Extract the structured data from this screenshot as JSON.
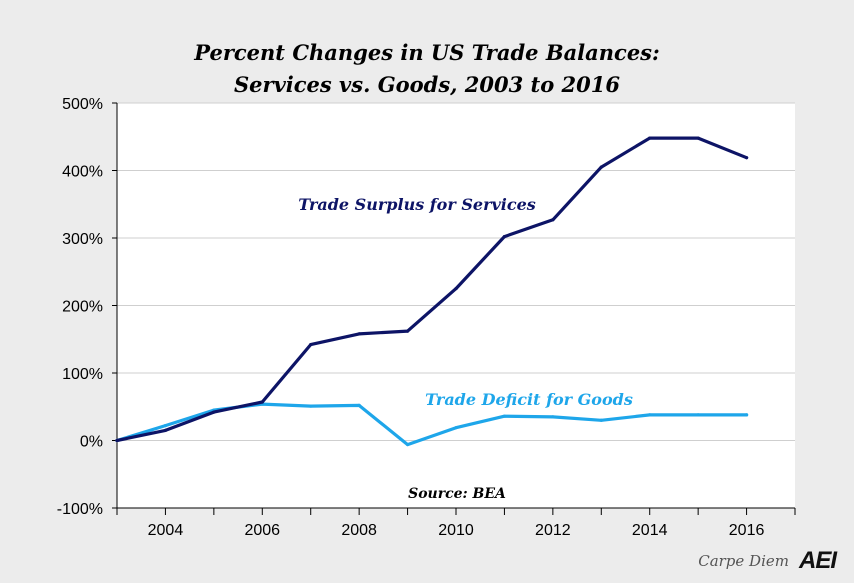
{
  "chart_data": {
    "type": "line",
    "title_line1": "Percent Changes in US Trade Balances:",
    "title_line2": "Services vs. Goods, 2003 to 2016",
    "x": [
      2003,
      2004,
      2005,
      2006,
      2007,
      2008,
      2009,
      2010,
      2011,
      2012,
      2013,
      2014,
      2015,
      2016
    ],
    "series": [
      {
        "name": "Trade Surplus for Services",
        "color": "#0d1466",
        "values": [
          0,
          15,
          42,
          57,
          142,
          158,
          162,
          225,
          302,
          327,
          405,
          448,
          448,
          419
        ]
      },
      {
        "name": "Trade Deficit for Goods",
        "color": "#1ea6ea",
        "values": [
          0,
          22,
          45,
          54,
          51,
          52,
          -6,
          19,
          36,
          35,
          30,
          38,
          38,
          38
        ]
      }
    ],
    "xlim": [
      2003,
      2017
    ],
    "ylim": [
      -100,
      500
    ],
    "yticks": [
      -100,
      0,
      100,
      200,
      300,
      400,
      500
    ],
    "ytick_labels": [
      "-100%",
      "0%",
      "100%",
      "200%",
      "300%",
      "400%",
      "500%"
    ],
    "xticks": [
      2004,
      2006,
      2008,
      2010,
      2012,
      2014,
      2016
    ],
    "xtick_labels": [
      "2004",
      "2006",
      "2008",
      "2010",
      "2012",
      "2014",
      "2016"
    ],
    "source": "Source: BEA",
    "grid": true
  },
  "footer": {
    "brand": "Carpe Diem",
    "logo": "AEI"
  }
}
